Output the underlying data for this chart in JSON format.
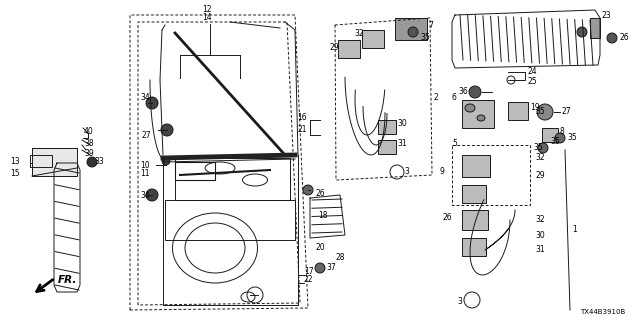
{
  "bg_color": "#ffffff",
  "diagram_code": "TX44B3910B",
  "line_color": "#1a1a1a",
  "label_color": "#000000",
  "lw": 0.7,
  "figsize": [
    6.4,
    3.2
  ],
  "dpi": 100
}
